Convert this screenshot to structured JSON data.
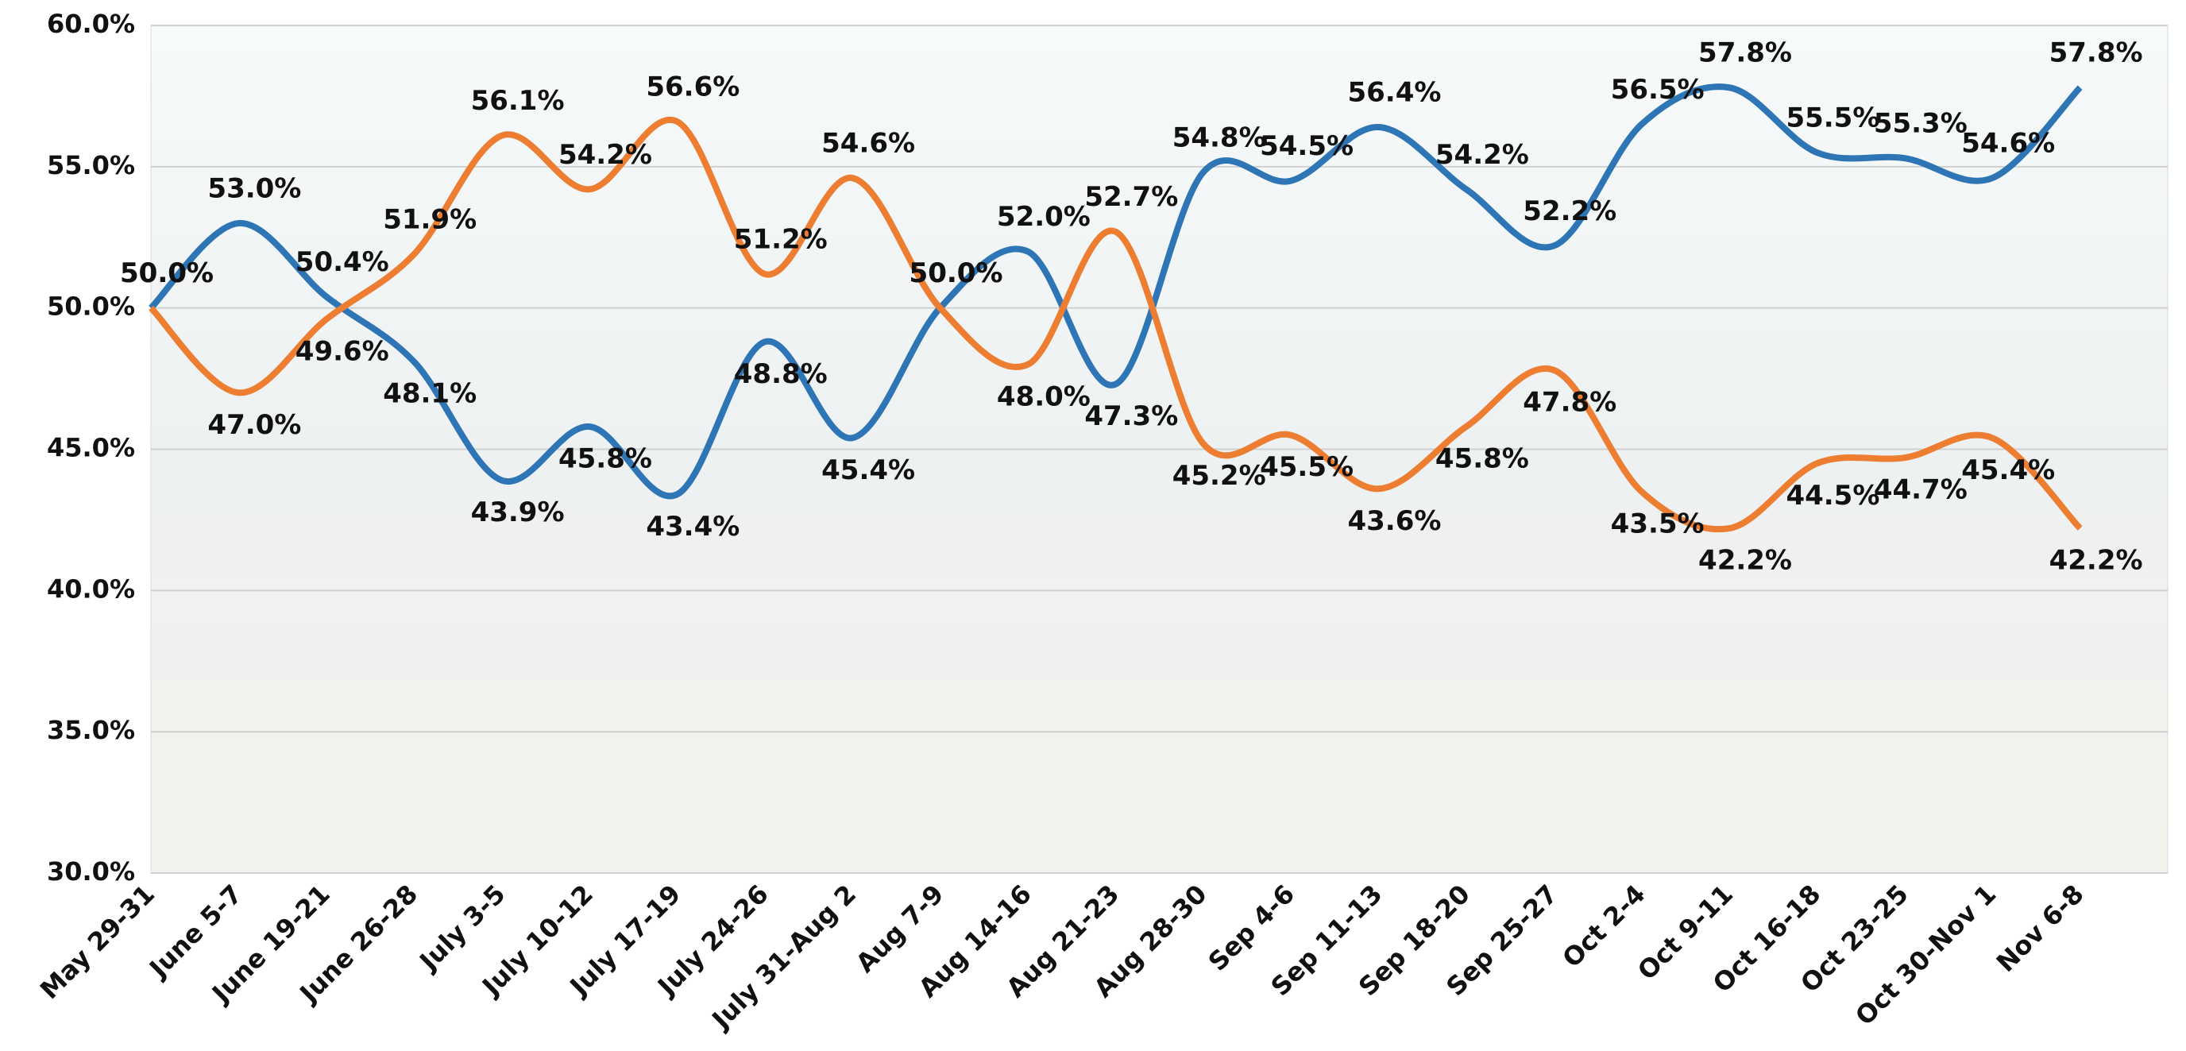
{
  "chart_data": {
    "type": "line",
    "categories": [
      "May 29-31",
      "June 5-7",
      "June 19-21",
      "June 26-28",
      "July 3-5",
      "July 10-12",
      "July 17-19",
      "July 24-26",
      "July 31-Aug 2",
      "Aug 7-9",
      "Aug 14-16",
      "Aug 21-23",
      "Aug 28-30",
      "Sep 4-6",
      "Sep 11-13",
      "Sep 18-20",
      "Sep 25-27",
      "Oct 2-4",
      "Oct 9-11",
      "Oct 16-18",
      "Oct 23-25",
      "Oct 30-Nov 1",
      "Nov 6-8"
    ],
    "series": [
      {
        "color": "#2e75b6",
        "values": [
          50.0,
          53.0,
          50.4,
          48.1,
          43.9,
          45.8,
          43.4,
          48.8,
          45.4,
          50.0,
          52.0,
          47.3,
          54.8,
          54.5,
          56.4,
          54.2,
          52.2,
          56.5,
          57.8,
          55.5,
          55.3,
          54.6,
          57.8
        ],
        "value_labels": [
          "50.0%",
          "53.0%",
          "50.4%",
          "48.1%",
          "43.9%",
          "45.8%",
          "43.4%",
          "48.8%",
          "45.4%",
          "50.0%",
          "52.0%",
          "47.3%",
          "54.8%",
          "54.5%",
          "56.4%",
          "54.2%",
          "52.2%",
          "56.5%",
          "57.8%",
          "55.5%",
          "55.3%",
          "54.6%",
          "57.8%"
        ]
      },
      {
        "color": "#ed7d31",
        "values": [
          50.0,
          47.0,
          49.6,
          51.9,
          56.1,
          54.2,
          56.6,
          51.2,
          54.6,
          50.0,
          48.0,
          52.7,
          45.2,
          45.5,
          43.6,
          45.8,
          47.8,
          43.5,
          42.2,
          44.5,
          44.7,
          45.4,
          42.2
        ],
        "value_labels": [
          "50.0%",
          "47.0%",
          "49.6%",
          "51.9%",
          "56.1%",
          "54.2%",
          "56.6%",
          "51.2%",
          "54.6%",
          "50.0%",
          "48.0%",
          "52.7%",
          "45.2%",
          "45.5%",
          "43.6%",
          "45.8%",
          "47.8%",
          "43.5%",
          "42.2%",
          "44.5%",
          "44.7%",
          "45.4%",
          "42.2%"
        ]
      }
    ],
    "ylim": [
      30,
      60
    ],
    "yticks": [
      {
        "value": 30,
        "label": "30.0%"
      },
      {
        "value": 35,
        "label": "35.0%"
      },
      {
        "value": 40,
        "label": "40.0%"
      },
      {
        "value": 45,
        "label": "45.0%"
      },
      {
        "value": 50,
        "label": "50.0%"
      },
      {
        "value": 55,
        "label": "55.0%"
      },
      {
        "value": 60,
        "label": "60.0%"
      }
    ],
    "grid": true
  }
}
